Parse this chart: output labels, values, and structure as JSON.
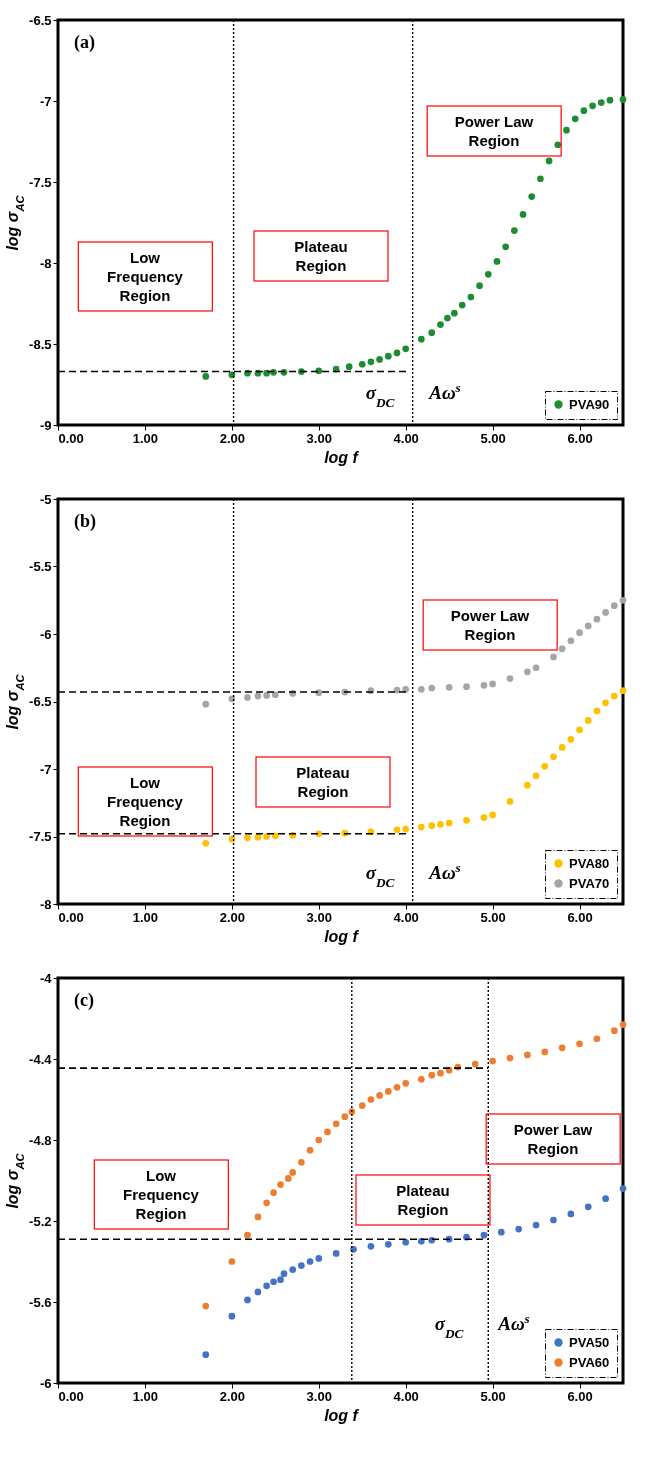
{
  "chart_data": [
    {
      "type": "scatter",
      "xlabel": "log f",
      "ylabel": "log σ$_{AC}$",
      "xlim": [
        0,
        6.5
      ],
      "ylim": [
        -9,
        -6.5
      ],
      "xticks": [
        {
          "value": 0,
          "label": "0.00"
        },
        {
          "value": 1,
          "label": "1.00"
        },
        {
          "value": 2,
          "label": "2.00"
        },
        {
          "value": 3,
          "label": "3.00"
        },
        {
          "value": 4,
          "label": "4.00"
        },
        {
          "value": 5,
          "label": "5.00"
        },
        {
          "value": 6,
          "label": "6.00"
        }
      ],
      "yticks": [
        -9,
        -8.5,
        -8,
        -7.5,
        -7,
        -6.5
      ],
      "marker": "circle",
      "legend": "bottom right",
      "series": [
        {
          "name": "PVA90",
          "color": "#1e8c32",
          "x": [
            1.7,
            2.0,
            2.18,
            2.3,
            2.4,
            2.48,
            2.6,
            2.8,
            3.0,
            3.2,
            3.35,
            3.5,
            3.6,
            3.7,
            3.8,
            3.9,
            4.0,
            4.18,
            4.3,
            4.4,
            4.48,
            4.56,
            4.65,
            4.75,
            4.85,
            4.95,
            5.05,
            5.15,
            5.25,
            5.35,
            5.45,
            5.55,
            5.65,
            5.75,
            5.85,
            5.95,
            6.05,
            6.15,
            6.25,
            6.35,
            6.5
          ],
          "values": [
            -8.7,
            -8.69,
            -8.68,
            -8.68,
            -8.68,
            -8.675,
            -8.675,
            -8.67,
            -8.665,
            -8.655,
            -8.64,
            -8.625,
            -8.61,
            -8.595,
            -8.575,
            -8.555,
            -8.53,
            -8.47,
            -8.43,
            -8.38,
            -8.34,
            -8.31,
            -8.26,
            -8.21,
            -8.14,
            -8.07,
            -7.99,
            -7.9,
            -7.8,
            -7.7,
            -7.59,
            -7.48,
            -7.37,
            -7.27,
            -7.18,
            -7.11,
            -7.06,
            -7.03,
            -7.01,
            -6.995,
            -6.99
          ]
        },
        {
          "type": "line",
          "color": "#000000",
          "line_style": "dashed",
          "marker": "none",
          "x": [
            0,
            4.05
          ],
          "values": [
            -8.67,
            -8.67
          ]
        }
      ],
      "ref_lines": [
        {
          "axis": "x",
          "value": 2.02,
          "line_style": "dotted"
        },
        {
          "axis": "x",
          "value": 4.08,
          "line_style": "dotted"
        }
      ],
      "annotations": [
        "(a)",
        "Low\nFrequency\nRegion",
        "Plateau\nRegion",
        "Power Law\nRegion",
        "σ$_{DC}$",
        "Aω$^{s}$"
      ]
    },
    {
      "type": "scatter",
      "xlabel": "log f",
      "ylabel": "log σ$_{AC}$",
      "xlim": [
        0,
        6.5
      ],
      "ylim": [
        -8,
        -5
      ],
      "xticks": [
        {
          "value": 0,
          "label": "0.00"
        },
        {
          "value": 1,
          "label": "1.00"
        },
        {
          "value": 2,
          "label": "2.00"
        },
        {
          "value": 3,
          "label": "3.00"
        },
        {
          "value": 4,
          "label": "4.00"
        },
        {
          "value": 5,
          "label": "5.00"
        },
        {
          "value": 6,
          "label": "6.00"
        }
      ],
      "yticks": [
        -8,
        -7.5,
        -7,
        -6.5,
        -6,
        -5.5,
        -5
      ],
      "marker": "circle",
      "legend": "bottom right",
      "series": [
        {
          "name": "PVA80",
          "color": "#ffc000",
          "x": [
            1.7,
            2.0,
            2.18,
            2.3,
            2.4,
            2.5,
            2.7,
            3.0,
            3.3,
            3.6,
            3.9,
            4.0,
            4.18,
            4.3,
            4.4,
            4.5,
            4.7,
            4.9,
            5.0,
            5.2,
            5.4,
            5.5,
            5.6,
            5.7,
            5.8,
            5.9,
            6.0,
            6.1,
            6.2,
            6.3,
            6.4,
            6.5
          ],
          "values": [
            -7.55,
            -7.52,
            -7.51,
            -7.505,
            -7.5,
            -7.495,
            -7.49,
            -7.48,
            -7.475,
            -7.465,
            -7.45,
            -7.445,
            -7.43,
            -7.42,
            -7.41,
            -7.4,
            -7.38,
            -7.36,
            -7.34,
            -7.24,
            -7.12,
            -7.05,
            -6.98,
            -6.91,
            -6.84,
            -6.78,
            -6.71,
            -6.64,
            -6.57,
            -6.51,
            -6.46,
            -6.42
          ]
        },
        {
          "name": "PVA70",
          "color": "#a5a5a5",
          "x": [
            1.7,
            2.0,
            2.18,
            2.3,
            2.4,
            2.5,
            2.7,
            3.0,
            3.3,
            3.6,
            3.9,
            4.0,
            4.18,
            4.3,
            4.5,
            4.7,
            4.9,
            5.0,
            5.2,
            5.4,
            5.5,
            5.7,
            5.8,
            5.9,
            6.0,
            6.1,
            6.2,
            6.3,
            6.4,
            6.5
          ],
          "values": [
            -6.52,
            -6.48,
            -6.47,
            -6.46,
            -6.455,
            -6.45,
            -6.44,
            -6.435,
            -6.43,
            -6.42,
            -6.415,
            -6.41,
            -6.41,
            -6.4,
            -6.395,
            -6.39,
            -6.38,
            -6.37,
            -6.33,
            -6.28,
            -6.25,
            -6.17,
            -6.11,
            -6.05,
            -5.99,
            -5.94,
            -5.89,
            -5.84,
            -5.79,
            -5.75
          ]
        },
        {
          "type": "line",
          "color": "#000000",
          "line_style": "dashed",
          "marker": "none",
          "x": [
            0,
            4.05
          ],
          "values": [
            -6.43,
            -6.43
          ]
        },
        {
          "type": "line",
          "color": "#000000",
          "line_style": "dashed",
          "marker": "none",
          "x": [
            0,
            4.05
          ],
          "values": [
            -7.48,
            -7.48
          ]
        }
      ],
      "ref_lines": [
        {
          "axis": "x",
          "value": 2.02,
          "line_style": "dotted"
        },
        {
          "axis": "x",
          "value": 4.08,
          "line_style": "dotted"
        }
      ],
      "annotations": [
        "(b)",
        "Low\nFrequency\nRegion",
        "Plateau\nRegion",
        "Power Law\nRegion",
        "σ$_{DC}$",
        "Aω$^{s}$"
      ]
    },
    {
      "type": "scatter",
      "xlabel": "log f",
      "ylabel": "log σ$_{AC}$",
      "xlim": [
        0,
        6.5
      ],
      "ylim": [
        -6,
        -4
      ],
      "xticks": [
        {
          "value": 0,
          "label": "0.00"
        },
        {
          "value": 1,
          "label": "1.00"
        },
        {
          "value": 2,
          "label": "2.00"
        },
        {
          "value": 3,
          "label": "3.00"
        },
        {
          "value": 4,
          "label": "4.00"
        },
        {
          "value": 5,
          "label": "5.00"
        },
        {
          "value": 6,
          "label": "6.00"
        }
      ],
      "yticks": [
        -6,
        -5.6,
        -5.2,
        -4.8,
        -4.4,
        -4
      ],
      "marker": "circle",
      "legend": "bottom right",
      "series": [
        {
          "name": "PVA50",
          "color": "#4472c4",
          "x": [
            1.7,
            2.0,
            2.18,
            2.3,
            2.4,
            2.48,
            2.56,
            2.6,
            2.7,
            2.8,
            2.9,
            3.0,
            3.2,
            3.4,
            3.6,
            3.8,
            4.0,
            4.18,
            4.3,
            4.5,
            4.7,
            4.9,
            5.1,
            5.3,
            5.5,
            5.7,
            5.9,
            6.1,
            6.3,
            6.5
          ],
          "values": [
            -5.86,
            -5.67,
            -5.59,
            -5.55,
            -5.52,
            -5.5,
            -5.49,
            -5.46,
            -5.44,
            -5.42,
            -5.4,
            -5.385,
            -5.36,
            -5.34,
            -5.325,
            -5.315,
            -5.305,
            -5.3,
            -5.295,
            -5.29,
            -5.28,
            -5.27,
            -5.255,
            -5.24,
            -5.22,
            -5.195,
            -5.165,
            -5.13,
            -5.09,
            -5.04
          ]
        },
        {
          "name": "PVA60",
          "color": "#ed7d31",
          "x": [
            1.7,
            2.0,
            2.18,
            2.3,
            2.4,
            2.48,
            2.56,
            2.65,
            2.7,
            2.8,
            2.9,
            3.0,
            3.1,
            3.2,
            3.3,
            3.38,
            3.5,
            3.6,
            3.7,
            3.8,
            3.9,
            4.0,
            4.18,
            4.3,
            4.4,
            4.5,
            4.6,
            4.8,
            5.0,
            5.2,
            5.4,
            5.6,
            5.8,
            6.0,
            6.2,
            6.4,
            6.5
          ],
          "values": [
            -5.62,
            -5.4,
            -5.27,
            -5.18,
            -5.11,
            -5.06,
            -5.02,
            -4.99,
            -4.96,
            -4.91,
            -4.85,
            -4.8,
            -4.76,
            -4.72,
            -4.685,
            -4.66,
            -4.63,
            -4.6,
            -4.58,
            -4.56,
            -4.54,
            -4.52,
            -4.5,
            -4.48,
            -4.47,
            -4.455,
            -4.44,
            -4.425,
            -4.41,
            -4.395,
            -4.38,
            -4.365,
            -4.345,
            -4.325,
            -4.3,
            -4.26,
            -4.23
          ]
        },
        {
          "type": "line",
          "color": "#000000",
          "line_style": "dashed",
          "marker": "none",
          "x": [
            0,
            4.95
          ],
          "values": [
            -4.445,
            -4.445
          ]
        },
        {
          "type": "line",
          "color": "#000000",
          "line_style": "dashed",
          "marker": "none",
          "x": [
            0,
            4.95
          ],
          "values": [
            -5.29,
            -5.29
          ]
        }
      ],
      "ref_lines": [
        {
          "axis": "x",
          "value": 3.38,
          "line_style": "dotted"
        },
        {
          "axis": "x",
          "value": 4.95,
          "line_style": "dotted"
        }
      ],
      "annotations": [
        "(c)",
        "Low\nFrequency\nRegion",
        "Plateau\nRegion",
        "Power Law\nRegion",
        "σ$_{DC}$",
        "Aω$^{s}$"
      ]
    }
  ]
}
